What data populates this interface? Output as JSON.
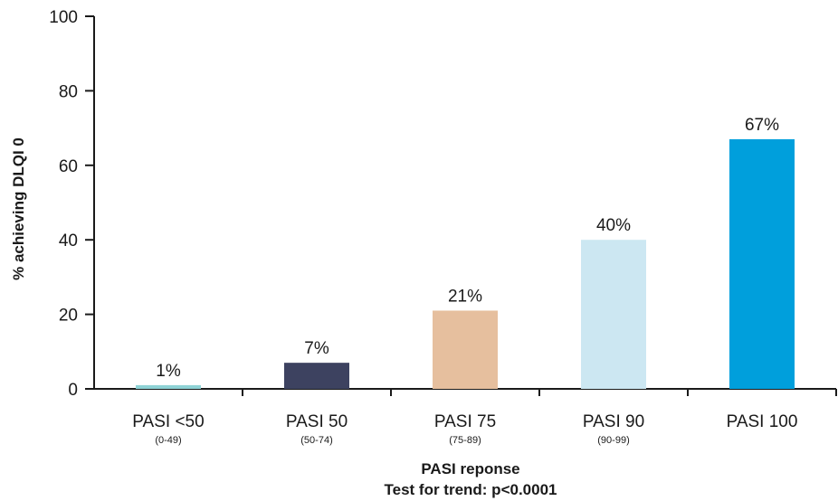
{
  "chart_data": {
    "type": "bar",
    "categories": [
      "PASI <50",
      "PASI 50",
      "PASI 75",
      "PASI 90",
      "PASI 100"
    ],
    "category_ranges": [
      "(0-49)",
      "(50-74)",
      "(75-89)",
      "(90-99)",
      ""
    ],
    "values": [
      1,
      7,
      21,
      40,
      67
    ],
    "value_labels": [
      "1%",
      "7%",
      "21%",
      "40%",
      "67%"
    ],
    "colors": [
      "#8fd3d6",
      "#3d4260",
      "#e6bf9e",
      "#cce7f2",
      "#009fdc"
    ],
    "ylabel": "% achieving DLQI 0",
    "xlabel": "PASI reponse",
    "subtitle": "Test for trend: p<0.0001",
    "ylim": [
      0,
      100
    ],
    "yticks": [
      0,
      20,
      40,
      60,
      80,
      100
    ],
    "grid": false,
    "legend": "none"
  }
}
